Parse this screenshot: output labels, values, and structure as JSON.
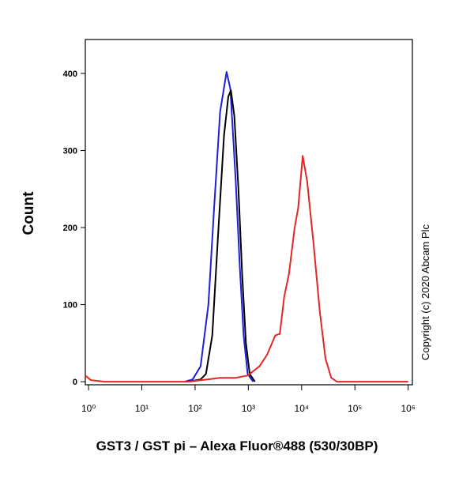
{
  "chart_data": {
    "type": "line",
    "x_label": "GST3 / GST pi – Alexa Fluor®488 (530/30BP)",
    "y_label": "Count",
    "annotation": "Copyright (c) 2020 Abcam Plc",
    "x_scale": "log",
    "xlim": [
      0.87,
      1200000
    ],
    "ylim": [
      -4,
      444
    ],
    "xticks": [
      {
        "value": 1,
        "label": "10⁰"
      },
      {
        "value": 10,
        "label": "10¹"
      },
      {
        "value": 100,
        "label": "10²"
      },
      {
        "value": 1000,
        "label": "10³"
      },
      {
        "value": 10000,
        "label": "10⁴"
      },
      {
        "value": 100000,
        "label": "10⁵"
      },
      {
        "value": 1000000,
        "label": "10⁶"
      }
    ],
    "yticks": [
      0,
      100,
      200,
      300,
      400
    ],
    "series": [
      {
        "color": "#1f1fd6",
        "x": [
          64,
          90,
          127,
          178,
          225,
          295,
          390,
          460,
          580,
          690,
          815,
          970,
          1230
        ],
        "values": [
          0,
          3,
          20,
          100,
          220,
          350,
          402,
          380,
          260,
          150,
          60,
          10,
          0
        ]
      },
      {
        "color": "#000000",
        "x": [
          76,
          127,
          160,
          210,
          275,
          350,
          420,
          470,
          545,
          650,
          765,
          900,
          1060,
          1330
        ],
        "values": [
          0,
          3,
          10,
          60,
          200,
          320,
          370,
          378,
          345,
          250,
          140,
          50,
          10,
          0
        ]
      },
      {
        "color": "#e32626",
        "x": [
          0.87,
          1.1,
          2,
          76,
          170,
          295,
          580,
          970,
          1620,
          2250,
          3200,
          3900,
          4700,
          5800,
          7400,
          8600,
          10500,
          12700,
          16700,
          22000,
          28000,
          36000,
          46000,
          1000000
        ],
        "values": [
          8,
          2,
          0,
          0,
          3,
          5,
          5,
          8,
          20,
          35,
          60,
          62,
          110,
          140,
          200,
          225,
          293,
          260,
          180,
          90,
          30,
          5,
          0,
          0
        ]
      }
    ]
  }
}
